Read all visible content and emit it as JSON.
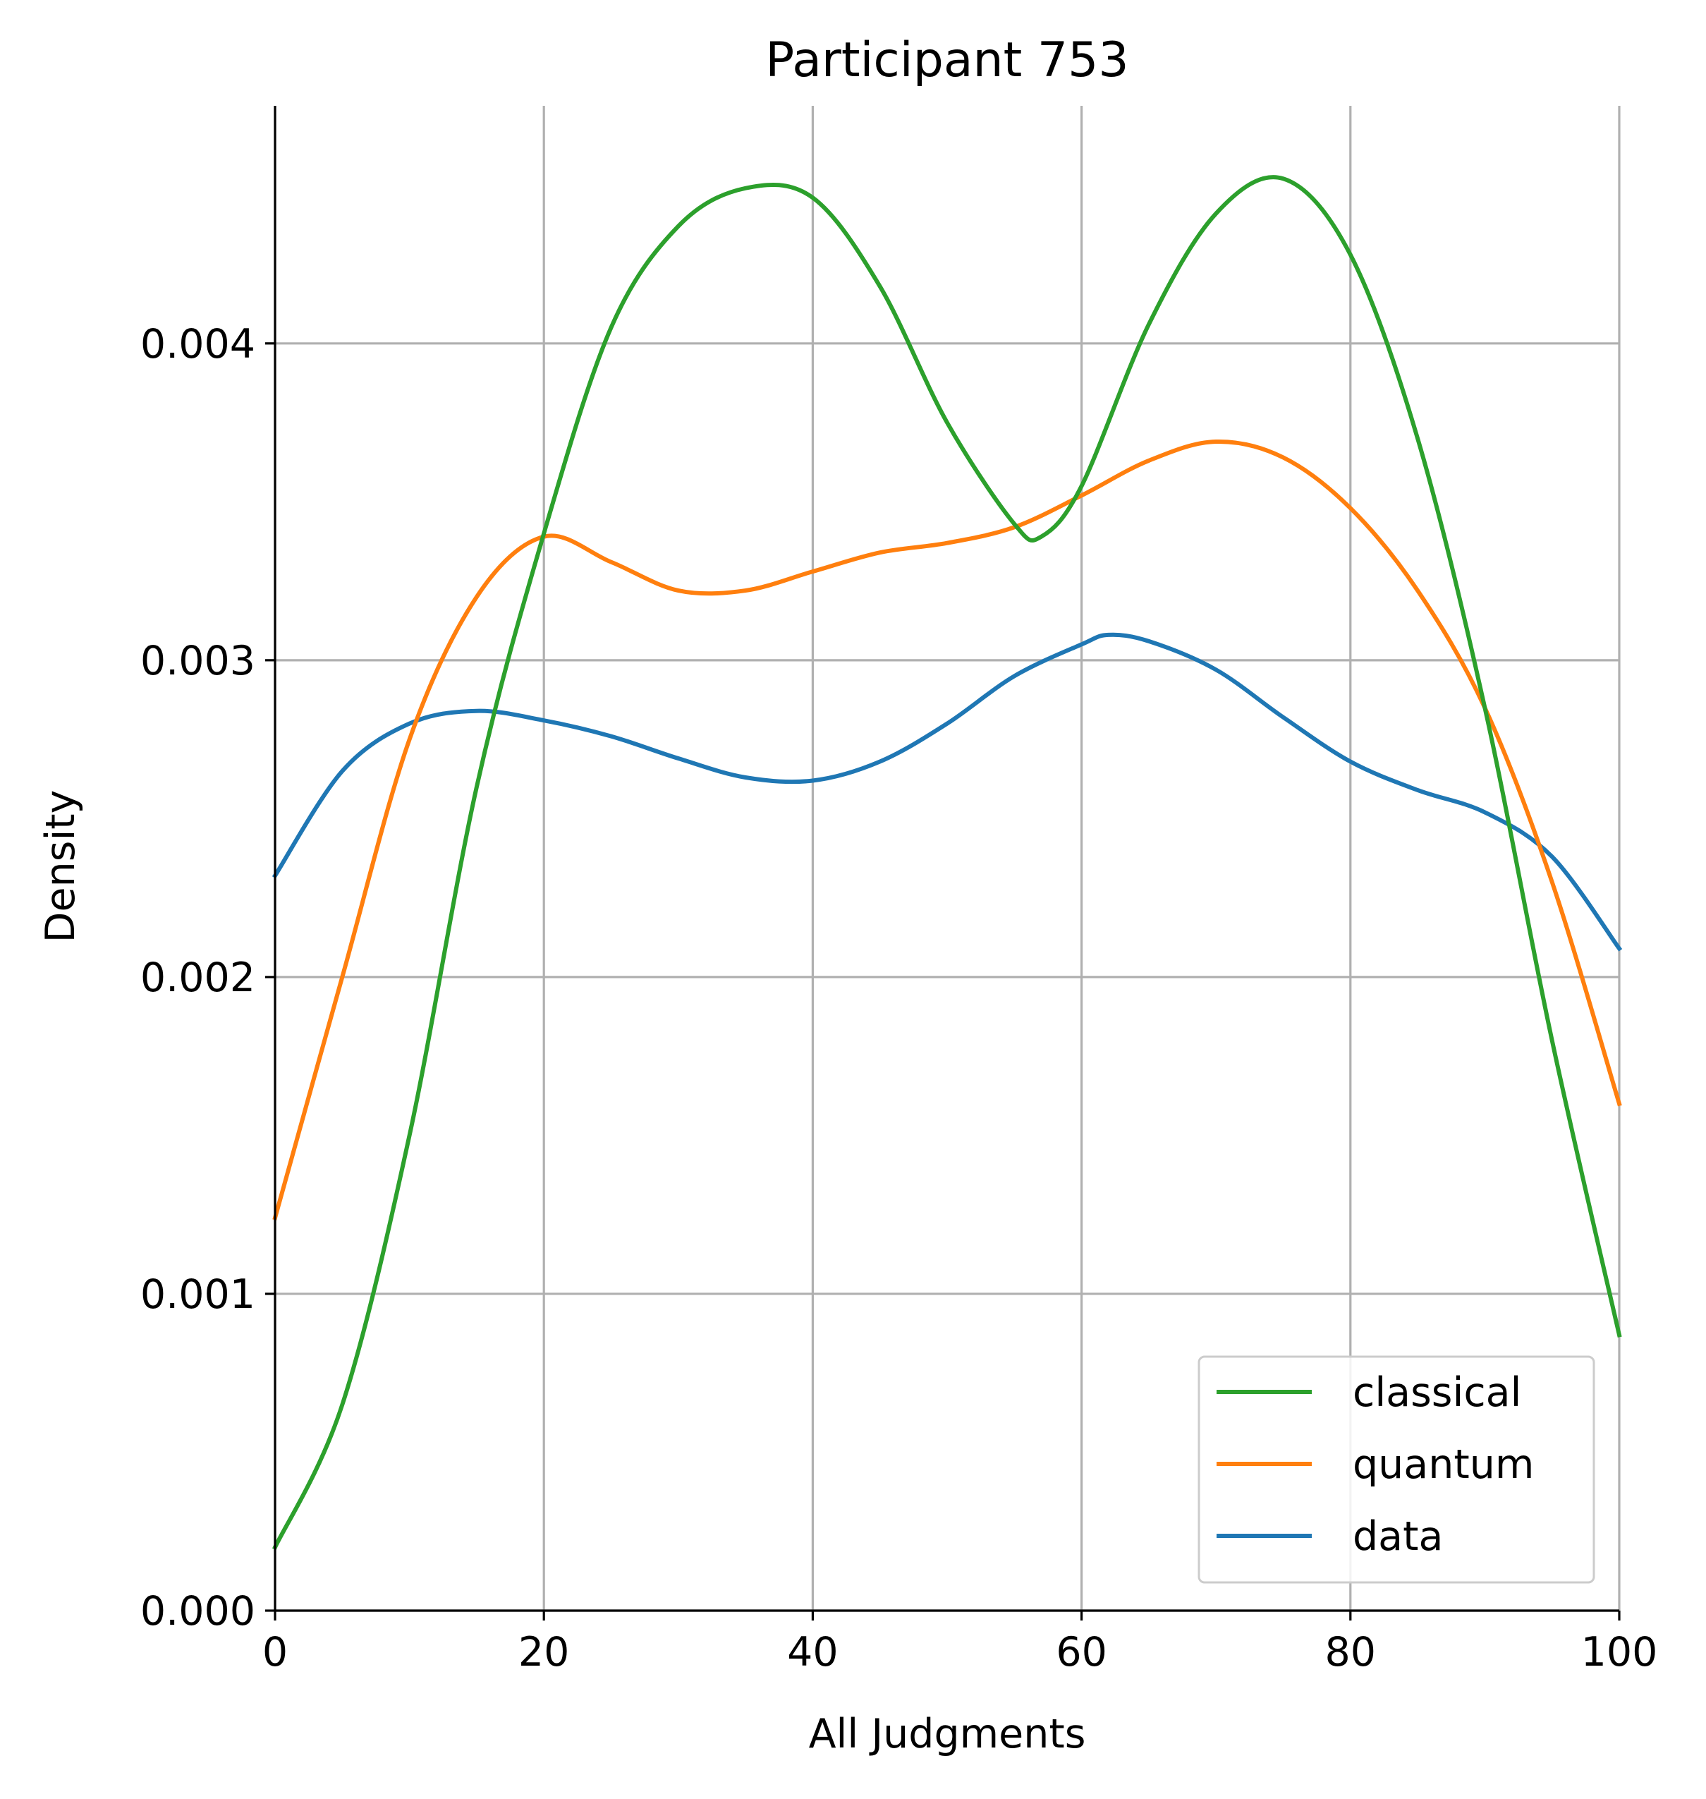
{
  "chart_data": {
    "type": "line",
    "title": "Participant 753",
    "xlabel": "All Judgments",
    "ylabel": "Density",
    "xlim": [
      0,
      100
    ],
    "ylim": [
      0,
      0.00475
    ],
    "xticks": [
      0,
      20,
      40,
      60,
      80,
      100
    ],
    "xtick_labels": [
      "0",
      "20",
      "40",
      "60",
      "80",
      "100"
    ],
    "yticks": [
      0,
      0.001,
      0.002,
      0.003,
      0.004
    ],
    "ytick_labels": [
      "0.000",
      "0.001",
      "0.002",
      "0.003",
      "0.004"
    ],
    "grid": true,
    "legend_position": "lower right",
    "series": [
      {
        "name": "classical",
        "color": "#2ca02c",
        "points": [
          [
            0,
            0.0002
          ],
          [
            5,
            0.00065
          ],
          [
            10,
            0.0015
          ],
          [
            15,
            0.0026
          ],
          [
            20,
            0.0034
          ],
          [
            25,
            0.00405
          ],
          [
            30,
            0.00437
          ],
          [
            35,
            0.00449
          ],
          [
            40,
            0.00446
          ],
          [
            45,
            0.00418
          ],
          [
            50,
            0.00375
          ],
          [
            55,
            0.00343
          ],
          [
            57,
            0.00339
          ],
          [
            60,
            0.00355
          ],
          [
            65,
            0.00406
          ],
          [
            70,
            0.00441
          ],
          [
            75,
            0.00452
          ],
          [
            80,
            0.00428
          ],
          [
            85,
            0.0037
          ],
          [
            90,
            0.00285
          ],
          [
            95,
            0.0018
          ],
          [
            100,
            0.00087
          ]
        ]
      },
      {
        "name": "quantum",
        "color": "#ff7f0e",
        "points": [
          [
            0,
            0.00124
          ],
          [
            5,
            0.002
          ],
          [
            10,
            0.00275
          ],
          [
            15,
            0.0032
          ],
          [
            20,
            0.00339
          ],
          [
            25,
            0.00331
          ],
          [
            30,
            0.00322
          ],
          [
            35,
            0.00322
          ],
          [
            40,
            0.00328
          ],
          [
            45,
            0.00334
          ],
          [
            50,
            0.00337
          ],
          [
            55,
            0.00342
          ],
          [
            60,
            0.00352
          ],
          [
            65,
            0.00363
          ],
          [
            70,
            0.00369
          ],
          [
            75,
            0.00364
          ],
          [
            80,
            0.00348
          ],
          [
            85,
            0.00322
          ],
          [
            90,
            0.00285
          ],
          [
            95,
            0.0023
          ],
          [
            100,
            0.0016
          ]
        ]
      },
      {
        "name": "data",
        "color": "#1f77b4",
        "points": [
          [
            0,
            0.00232
          ],
          [
            5,
            0.00265
          ],
          [
            10,
            0.0028
          ],
          [
            15,
            0.00284
          ],
          [
            20,
            0.00281
          ],
          [
            25,
            0.00276
          ],
          [
            30,
            0.00269
          ],
          [
            35,
            0.00263
          ],
          [
            40,
            0.00262
          ],
          [
            45,
            0.00268
          ],
          [
            50,
            0.0028
          ],
          [
            55,
            0.00295
          ],
          [
            60,
            0.00305
          ],
          [
            62,
            0.00308
          ],
          [
            65,
            0.00306
          ],
          [
            70,
            0.00297
          ],
          [
            75,
            0.00282
          ],
          [
            80,
            0.00268
          ],
          [
            85,
            0.00259
          ],
          [
            90,
            0.00252
          ],
          [
            95,
            0.00238
          ],
          [
            100,
            0.00209
          ]
        ]
      }
    ]
  }
}
